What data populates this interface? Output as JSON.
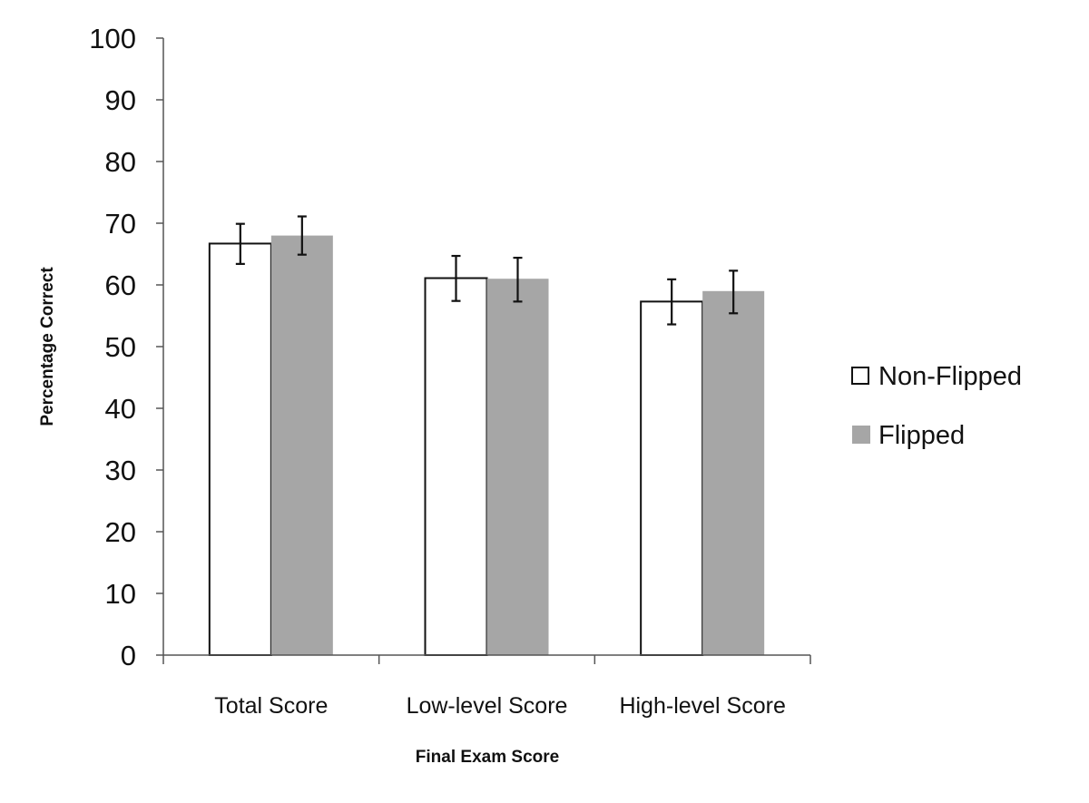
{
  "chart_data": {
    "type": "bar",
    "title": "",
    "xlabel": "Final Exam Score",
    "ylabel": "Percentage Correct",
    "ylim": [
      0,
      100
    ],
    "yticks": [
      "0",
      "10",
      "20",
      "30",
      "40",
      "50",
      "60",
      "70",
      "80",
      "90",
      "100"
    ],
    "categories": [
      "Total Score",
      "Low-level Score",
      "High-level Score"
    ],
    "grid": false,
    "legend_position": "right",
    "error_bars": true,
    "series": [
      {
        "name": "Non-Flipped",
        "color": "#ffffff",
        "values": [
          66.7,
          61.1,
          57.3
        ],
        "error_low": [
          63.4,
          57.4,
          53.6
        ],
        "error_high": [
          69.9,
          64.7,
          60.9
        ]
      },
      {
        "name": "Flipped",
        "color": "#a6a6a6",
        "values": [
          68.0,
          61.0,
          59.0
        ],
        "error_low": [
          64.9,
          57.3,
          55.4
        ],
        "error_high": [
          71.1,
          64.4,
          62.3
        ]
      }
    ]
  }
}
